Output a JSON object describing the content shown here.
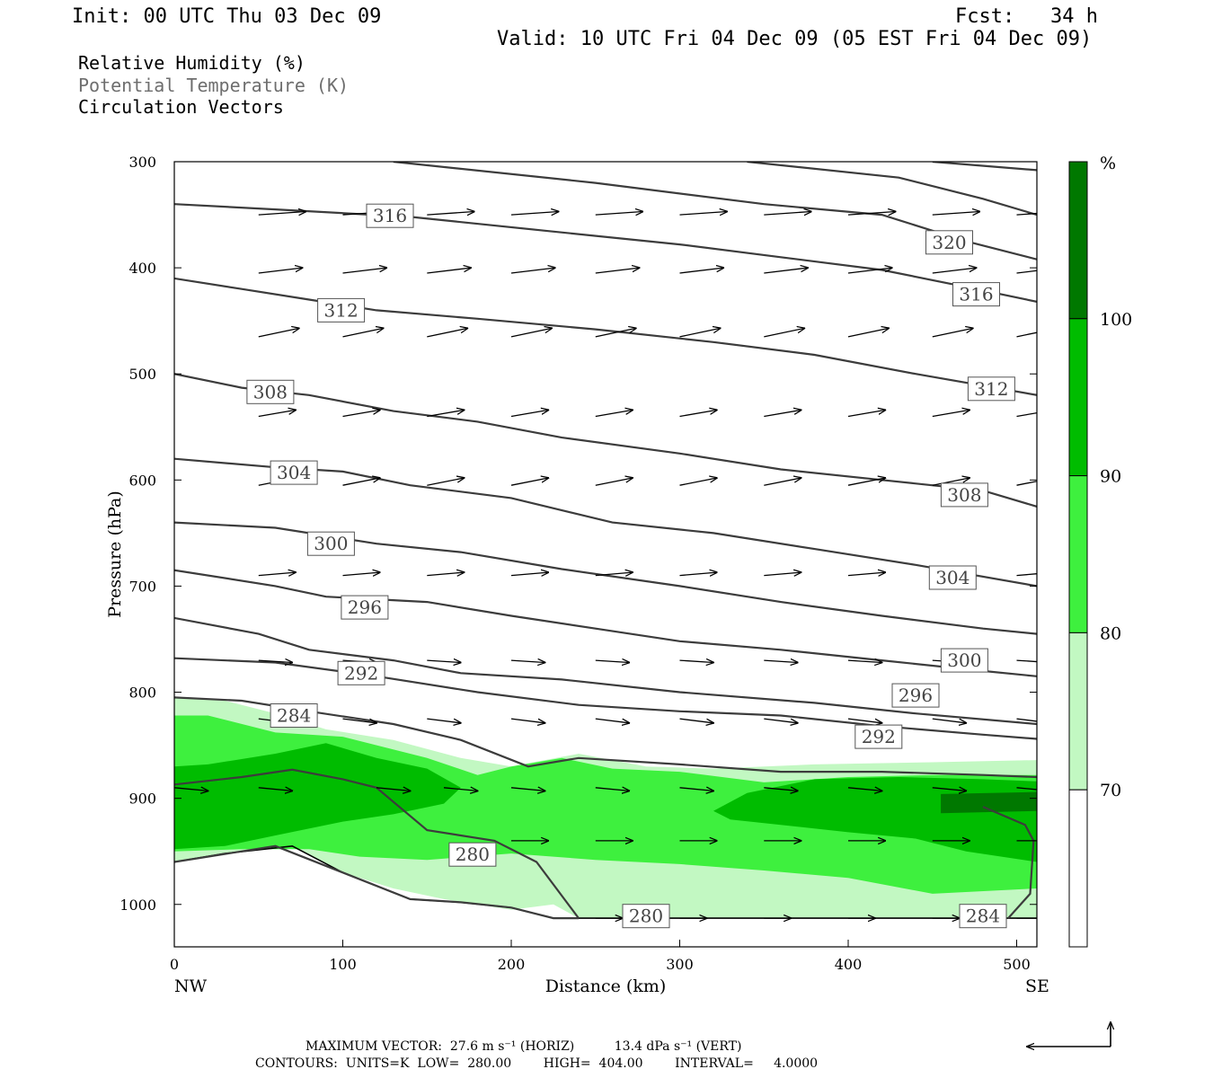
{
  "header": {
    "init": "Init: 00 UTC Thu 03 Dec 09",
    "fcst": "Fcst:   34 h",
    "valid": "Valid: 10 UTC Fri 04 Dec 09 (05 EST Fri 04 Dec 09)",
    "fields": [
      "Relative Humidity (%)",
      "Potential Temperature (K)",
      "Circulation Vectors"
    ]
  },
  "chart_data": {
    "type": "cross-section",
    "xlabel": "Distance (km)",
    "ylabel": "Pressure (hPa)",
    "xlim": [
      0,
      512
    ],
    "ylim": [
      1040,
      300
    ],
    "x_ticks": [
      0,
      100,
      200,
      300,
      400,
      500
    ],
    "y_ticks": [
      300,
      400,
      500,
      600,
      700,
      800,
      900,
      1000
    ],
    "x_end_labels": {
      "left": "NW",
      "right": "SE"
    },
    "colorbar": {
      "unit": "%",
      "levels": [
        70,
        80,
        90,
        100
      ],
      "colors": [
        "#ffffff",
        "#c2f8c2",
        "#3ef03e",
        "#00bc00",
        "#007800"
      ]
    },
    "terrain_hpa": [
      [
        0,
        960
      ],
      [
        30,
        952
      ],
      [
        70,
        945
      ],
      [
        100,
        970
      ],
      [
        140,
        995
      ],
      [
        170,
        998
      ],
      [
        200,
        1003
      ],
      [
        225,
        1013
      ],
      [
        240,
        1013
      ],
      [
        300,
        1013
      ],
      [
        512,
        1013
      ]
    ],
    "rh_regions": [
      {
        "level": 70,
        "points": [
          [
            0,
            805
          ],
          [
            30,
            808
          ],
          [
            60,
            820
          ],
          [
            90,
            835
          ],
          [
            130,
            845
          ],
          [
            170,
            862
          ],
          [
            200,
            870
          ],
          [
            240,
            858
          ],
          [
            280,
            870
          ],
          [
            320,
            872
          ],
          [
            380,
            868
          ],
          [
            450,
            866
          ],
          [
            512,
            864
          ],
          [
            512,
            1013
          ],
          [
            240,
            1013
          ],
          [
            225,
            1000
          ],
          [
            200,
            1005
          ],
          [
            160,
            995
          ],
          [
            130,
            985
          ],
          [
            100,
            970
          ],
          [
            70,
            945
          ],
          [
            30,
            952
          ],
          [
            0,
            960
          ]
        ]
      },
      {
        "level": 80,
        "points": [
          [
            0,
            822
          ],
          [
            20,
            822
          ],
          [
            60,
            838
          ],
          [
            100,
            842
          ],
          [
            150,
            862
          ],
          [
            180,
            878
          ],
          [
            200,
            870
          ],
          [
            230,
            862
          ],
          [
            260,
            872
          ],
          [
            300,
            875
          ],
          [
            350,
            885
          ],
          [
            400,
            880
          ],
          [
            450,
            878
          ],
          [
            512,
            878
          ],
          [
            512,
            985
          ],
          [
            450,
            990
          ],
          [
            400,
            975
          ],
          [
            350,
            968
          ],
          [
            300,
            962
          ],
          [
            250,
            958
          ],
          [
            200,
            952
          ],
          [
            150,
            958
          ],
          [
            110,
            955
          ],
          [
            80,
            948
          ],
          [
            40,
            948
          ],
          [
            0,
            950
          ]
        ]
      },
      {
        "level": 90,
        "points": [
          [
            0,
            870
          ],
          [
            20,
            868
          ],
          [
            60,
            858
          ],
          [
            90,
            848
          ],
          [
            120,
            862
          ],
          [
            150,
            872
          ],
          [
            170,
            890
          ],
          [
            160,
            905
          ],
          [
            130,
            915
          ],
          [
            100,
            922
          ],
          [
            60,
            935
          ],
          [
            30,
            945
          ],
          [
            0,
            948
          ]
        ]
      },
      {
        "level": 90,
        "points": [
          [
            320,
            912
          ],
          [
            340,
            895
          ],
          [
            380,
            882
          ],
          [
            430,
            880
          ],
          [
            480,
            882
          ],
          [
            512,
            884
          ],
          [
            512,
            960
          ],
          [
            470,
            950
          ],
          [
            440,
            938
          ],
          [
            400,
            932
          ],
          [
            360,
            925
          ],
          [
            330,
            920
          ]
        ]
      },
      {
        "level": 100,
        "points": [
          [
            455,
            896
          ],
          [
            512,
            894
          ],
          [
            512,
            912
          ],
          [
            455,
            914
          ]
        ]
      }
    ],
    "theta_contour_levels": [
      280,
      284,
      292,
      296,
      300,
      304,
      308,
      312,
      316,
      320
    ],
    "theta_labels": [
      {
        "value": "316",
        "x": 128,
        "p": 351
      },
      {
        "value": "320",
        "x": 460,
        "p": 376
      },
      {
        "value": "316",
        "x": 476,
        "p": 425
      },
      {
        "value": "312",
        "x": 99,
        "p": 440
      },
      {
        "value": "312",
        "x": 485,
        "p": 514
      },
      {
        "value": "308",
        "x": 57,
        "p": 517
      },
      {
        "value": "304",
        "x": 71,
        "p": 593
      },
      {
        "value": "308",
        "x": 469,
        "p": 614
      },
      {
        "value": "300",
        "x": 93,
        "p": 660
      },
      {
        "value": "304",
        "x": 462,
        "p": 692
      },
      {
        "value": "296",
        "x": 113,
        "p": 720
      },
      {
        "value": "300",
        "x": 469,
        "p": 770
      },
      {
        "value": "292",
        "x": 111,
        "p": 782
      },
      {
        "value": "296",
        "x": 440,
        "p": 803
      },
      {
        "value": "284",
        "x": 71,
        "p": 822
      },
      {
        "value": "292",
        "x": 418,
        "p": 842
      },
      {
        "value": "280",
        "x": 177,
        "p": 953
      },
      {
        "value": "280",
        "x": 280,
        "p": 1011
      },
      {
        "value": "284",
        "x": 480,
        "p": 1011
      }
    ],
    "footer_line1": "MAXIMUM VECTOR:  27.6 m s⁻¹ (HORIZ)          13.4 dPa s⁻¹ (VERT)",
    "footer_line2": "CONTOURS:  UNITS=K  LOW=  280.00        HIGH=  404.00        INTERVAL=     4.0000"
  }
}
